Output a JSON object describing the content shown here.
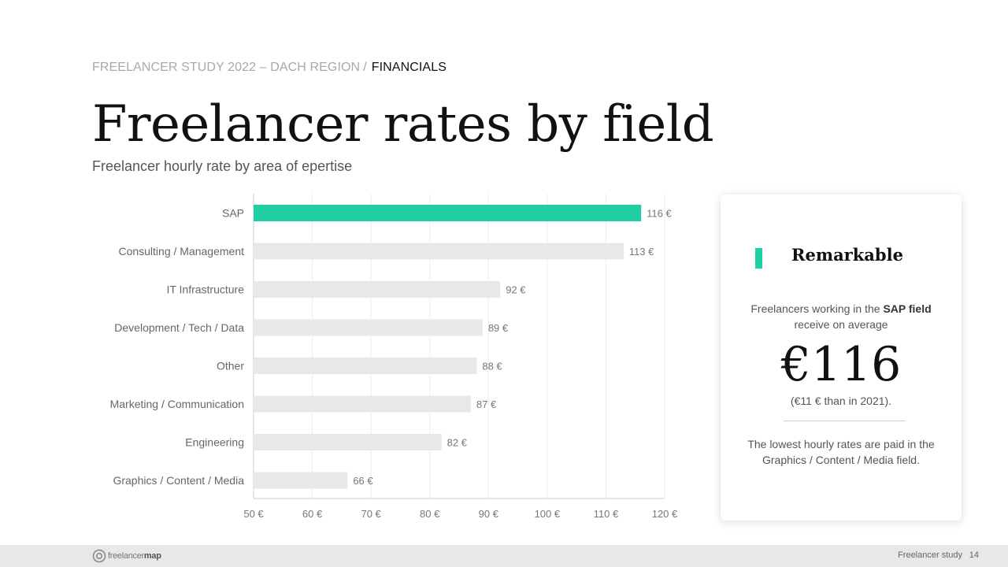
{
  "header": {
    "breadcrumb_section": "FREELANCER STUDY 2022 – DACH REGION",
    "breadcrumb_separator": "/",
    "breadcrumb_current": "FINANCIALS",
    "title": "Freelancer rates by field",
    "subtitle": "Freelancer hourly rate by area of epertise"
  },
  "chart_data": {
    "type": "bar",
    "orientation": "horizontal",
    "categories": [
      "SAP",
      "Consulting / Management",
      "IT Infrastructure",
      "Development / Tech / Data",
      "Other",
      "Marketing / Communication",
      "Engineering",
      "Graphics / Content / Media"
    ],
    "values": [
      116,
      113,
      92,
      89,
      88,
      87,
      82,
      66
    ],
    "value_labels": [
      "116 €",
      "113 €",
      "92 €",
      "89 €",
      "88 €",
      "87 €",
      "82 €",
      "66 €"
    ],
    "xlim": [
      50,
      120
    ],
    "x_ticks": [
      50,
      60,
      70,
      80,
      90,
      100,
      110,
      120
    ],
    "x_tick_labels": [
      "50 €",
      "60 €",
      "70 €",
      "80 €",
      "90 €",
      "100 €",
      "110 €",
      "120 €"
    ],
    "grid": true,
    "highlight_index": 0,
    "highlight_color": "#20cfa4",
    "bar_color": "#e8e8e9"
  },
  "card": {
    "title": "Remarkable",
    "text1_prefix": "Freelancers working in the",
    "text1_bold": "SAP field",
    "text1_suffix": "receive on average",
    "big_value": "€116",
    "note": "(€11 € than in 2021).",
    "text2": "The lowest hourly rates are paid in the Graphics / Content / Media field.",
    "accent_color": "#20cfa4"
  },
  "footer": {
    "logo_text_light": "freelancer",
    "logo_text_bold": "map",
    "label": "Freelancer study",
    "page": "14"
  }
}
